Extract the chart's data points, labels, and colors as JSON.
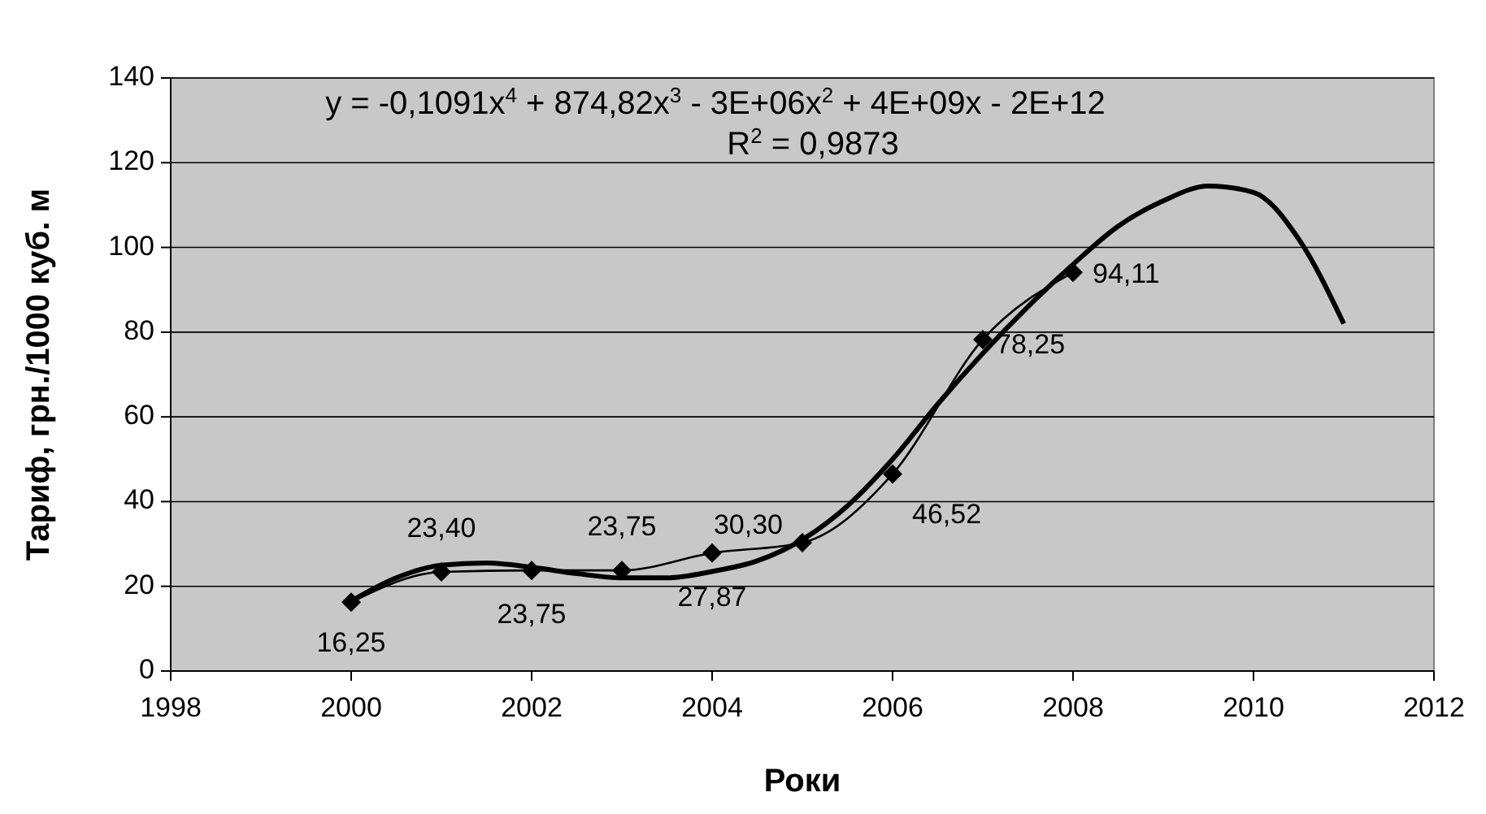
{
  "chart_data": {
    "type": "line",
    "xlabel": "Роки",
    "ylabel": "Тариф, грн./1000 куб. м",
    "xlim": [
      1998,
      2012
    ],
    "xticks": [
      1998,
      2000,
      2002,
      2004,
      2006,
      2008,
      2010,
      2012
    ],
    "ylim": [
      0,
      140
    ],
    "yticks": [
      0,
      20,
      40,
      60,
      80,
      100,
      120,
      140
    ],
    "grid": "y",
    "annotations": [
      "y = -0,1091x$^{4}$ + 874,82x$^{3}$ - 3E+06x$^{2}$ + 4E+09x - 2E+12",
      "R$^{2}$ = 0,9873"
    ],
    "series": [
      {
        "color": "#000000",
        "marker": "diamond",
        "x": [
          2000,
          2001,
          2002,
          2003,
          2004,
          2005,
          2006,
          2007,
          2008
        ],
        "values": [
          16.25,
          23.4,
          23.75,
          23.75,
          27.87,
          30.3,
          46.52,
          78.25,
          94.11
        ],
        "value_labels": [
          "16,25",
          "23,40",
          "23,75",
          "23,75",
          "27,87",
          "30,30",
          "46,52",
          "78,25",
          "94,11"
        ]
      },
      {
        "color": "#000000",
        "marker": "none",
        "x": [
          2000,
          2000.5,
          2001,
          2001.5,
          2002,
          2002.5,
          2003,
          2003.5,
          2004,
          2004.5,
          2005,
          2005.5,
          2006,
          2006.5,
          2007,
          2007.5,
          2008,
          2008.5,
          2009,
          2009.5,
          2010,
          2010.5,
          2011
        ],
        "values": [
          16.5,
          22,
          25,
          25.5,
          24.5,
          23,
          22,
          22,
          23.5,
          26,
          31,
          39,
          50,
          63,
          75,
          86,
          96,
          105,
          111,
          114.5,
          113,
          102,
          82
        ]
      }
    ]
  }
}
